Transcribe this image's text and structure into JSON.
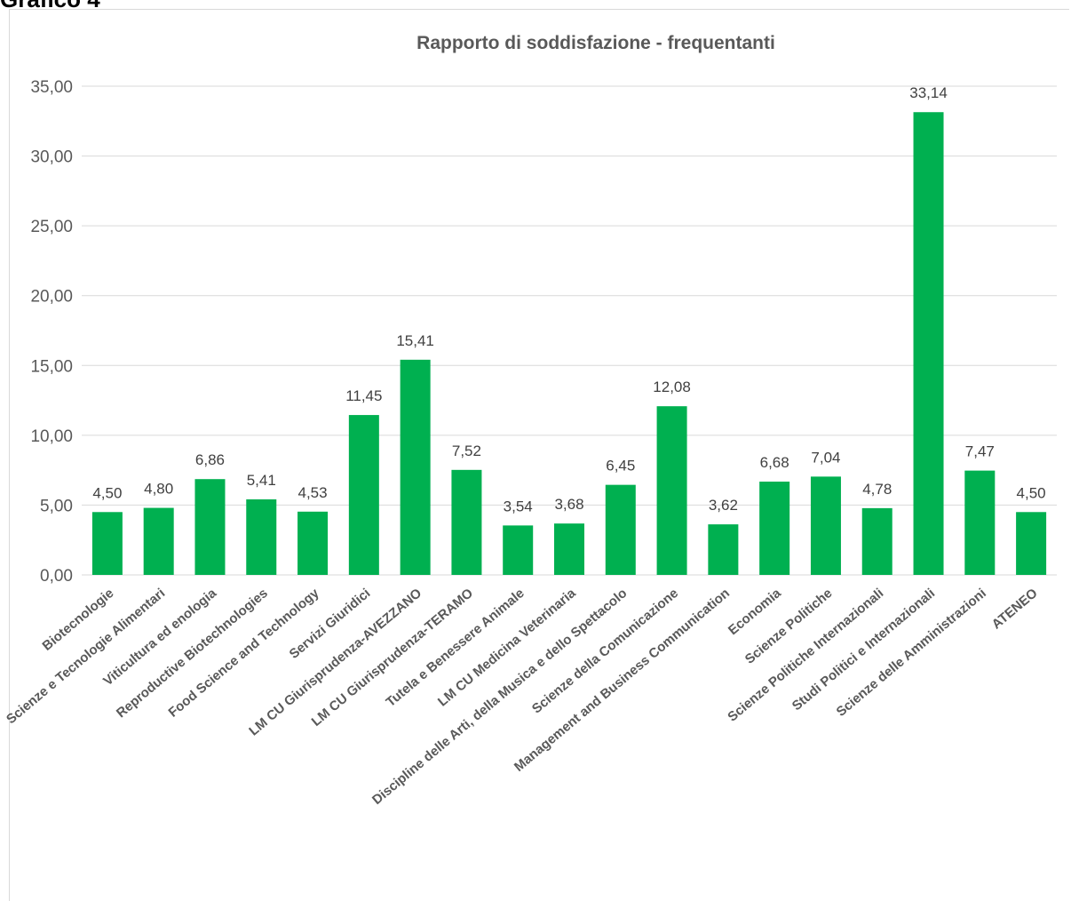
{
  "page": {
    "heading": "Grafico 4"
  },
  "chart_data": {
    "type": "bar",
    "title": "Rapporto di soddisfazione - frequentanti",
    "xlabel": "",
    "ylabel": "",
    "ylim": [
      0,
      35
    ],
    "y_ticks": [
      "0,00",
      "5,00",
      "10,00",
      "15,00",
      "20,00",
      "25,00",
      "30,00",
      "35,00"
    ],
    "grid": true,
    "legend": "none",
    "bar_color": "#00b050",
    "categories": [
      "Biotecnologie",
      "Scienze e Tecnologie Alimentari",
      "Viticultura ed enologia",
      "Reproductive Biotechnologies",
      "Food Science and Technology",
      "Servizi Giuridici",
      "LM CU  Giurisprudenza-AVEZZANO",
      "LM CU Giurisprudenza-TERAMO",
      "Tutela e Benessere Animale",
      "LM CU Medicina Veterinaria",
      "Discipline delle Arti, della Musica e dello Spettacolo",
      "Scienze della Comunicazione",
      "Management and Business Communication",
      "Economia",
      "Scienze Politiche",
      "Scienze Politiche Internazionali",
      "Studi Politici e Internazionali",
      "Scienze delle Amministrazioni",
      "ATENEO"
    ],
    "values": [
      4.5,
      4.8,
      6.86,
      5.41,
      4.53,
      11.45,
      15.41,
      7.52,
      3.54,
      3.68,
      6.45,
      12.08,
      3.62,
      6.68,
      7.04,
      4.78,
      33.14,
      7.47,
      4.5
    ],
    "data_labels": [
      "4,50",
      "4,80",
      "6,86",
      "5,41",
      "4,53",
      "11,45",
      "15,41",
      "7,52",
      "3,54",
      "3,68",
      "6,45",
      "12,08",
      "3,62",
      "6,68",
      "7,04",
      "4,78",
      "33,14",
      "7,47",
      "4,50"
    ]
  }
}
